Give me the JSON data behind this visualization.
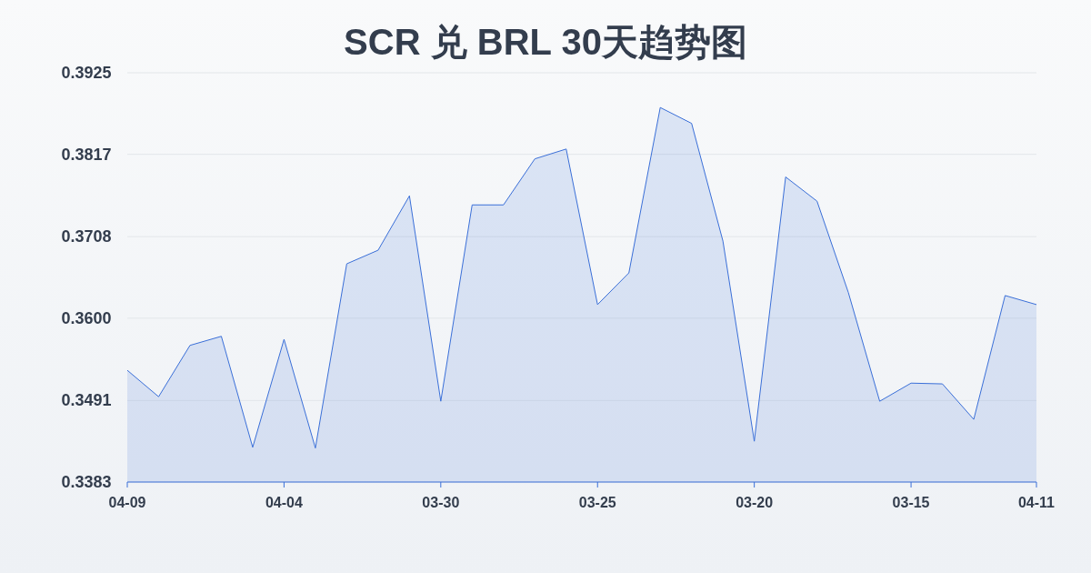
{
  "chart_data": {
    "type": "area",
    "title": "SCR 兑 BRL 30天趋势图",
    "categories": [
      "04-09",
      null,
      null,
      null,
      null,
      "04-04",
      null,
      null,
      null,
      null,
      "03-30",
      null,
      null,
      null,
      null,
      "03-25",
      null,
      null,
      null,
      null,
      "03-20",
      null,
      null,
      null,
      null,
      "03-15",
      null,
      null,
      null,
      "04-11"
    ],
    "series": [
      {
        "color": "#3a6fd8",
        "values": [
          0.3531,
          0.3496,
          0.3564,
          0.3576,
          0.3429,
          0.3572,
          0.3428,
          0.3672,
          0.369,
          0.3762,
          0.349,
          0.375,
          0.375,
          0.3811,
          0.3824,
          0.3618,
          0.366,
          0.3879,
          0.3858,
          0.3702,
          0.3437,
          0.3787,
          0.3755,
          0.3634,
          0.349,
          0.3514,
          0.3513,
          0.3466,
          0.363,
          0.3618
        ]
      }
    ],
    "ylim": [
      0.3383,
      0.3925
    ],
    "yticks": [
      {
        "value": 0.3383,
        "label": "0.3383"
      },
      {
        "value": 0.3491,
        "label": "0.3491"
      },
      {
        "value": 0.36,
        "label": "0.3600"
      },
      {
        "value": 0.3708,
        "label": "0.3708"
      },
      {
        "value": 0.3817,
        "label": "0.3817"
      },
      {
        "value": 0.3925,
        "label": "0.3925"
      }
    ],
    "grid": "y"
  }
}
